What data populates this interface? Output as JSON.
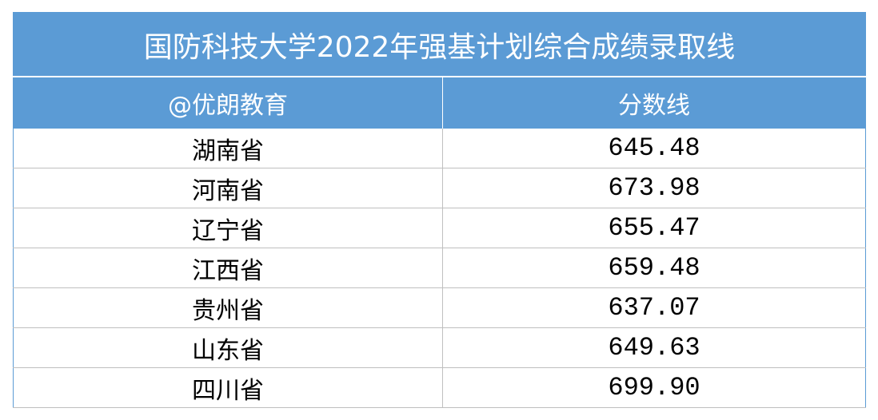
{
  "table": {
    "title": "国防科技大学2022年强基计划综合成绩录取线",
    "header": [
      "@优朗教育",
      "分数线"
    ],
    "rows": [
      [
        "湖南省",
        "645.48"
      ],
      [
        "河南省",
        "673.98"
      ],
      [
        "辽宁省",
        "655.47"
      ],
      [
        "江西省",
        "659.48"
      ],
      [
        "贵州省",
        "637.07"
      ],
      [
        "山东省",
        "649.63"
      ],
      [
        "四川省",
        "699.90"
      ]
    ]
  }
}
